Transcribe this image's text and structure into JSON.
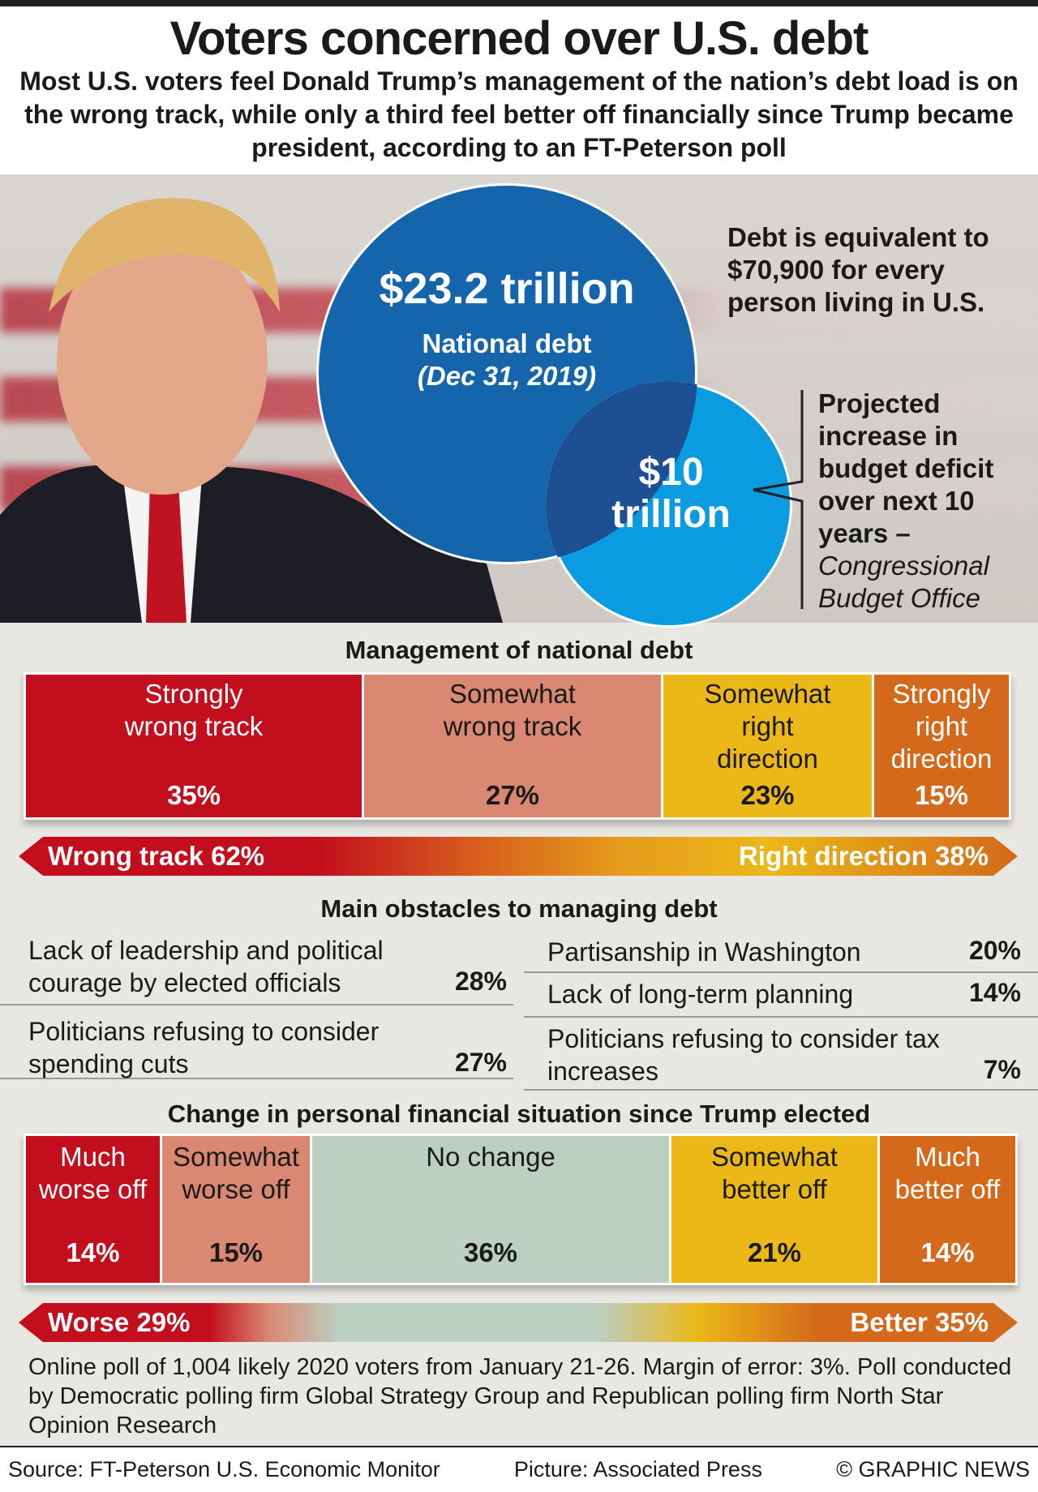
{
  "header": {
    "title": "Voters concerned over U.S. debt",
    "subtitle": "Most U.S. voters feel Donald Trump’s management of the nation’s debt load is on the wrong track, while only a third feel better off financially since Trump became president, according to an FT-Peterson poll"
  },
  "debt": {
    "amount": "$23.2 trillion",
    "label": "National debt",
    "date": "(Dec 31, 2019)",
    "per_person": "Debt is equivalent to $70,900 for every person living in U.S.",
    "deficit_amount_1": "$10",
    "deficit_amount_2": "trillion",
    "deficit_note": "Projected increase in budget deficit over next 10 years –",
    "deficit_source": "Congressional Budget Office",
    "colors": {
      "debt": "#1565ad",
      "deficit": "#0b9be0"
    }
  },
  "management": {
    "title": "Management of national debt",
    "items": [
      {
        "label": "Strongly wrong track",
        "pct": "35%",
        "value": 35,
        "color": "#c20e1d"
      },
      {
        "label": "Somewhat wrong track",
        "pct": "27%",
        "value": 27,
        "color": "#da8872"
      },
      {
        "label": "Somewhat right direction",
        "pct": "23%",
        "value": 23,
        "color": "#ebb818"
      },
      {
        "label": "Strongly right direction",
        "pct": "15%",
        "value": 15,
        "color": "#d4691b"
      }
    ],
    "left_total": "Wrong track 62%",
    "right_total": "Right direction 38%"
  },
  "obstacles": {
    "title": "Main obstacles to managing debt",
    "left": [
      {
        "label": "Lack of leadership and political courage by elected officials",
        "pct": "28%"
      },
      {
        "label": "Politicians refusing to consider spending cuts",
        "pct": "27%"
      }
    ],
    "right": [
      {
        "label": "Partisanship in Washington",
        "pct": "20%"
      },
      {
        "label": "Lack of long-term planning",
        "pct": "14%"
      },
      {
        "label": "Politicians refusing to consider tax increases",
        "pct": "7%"
      }
    ]
  },
  "finance": {
    "title": "Change in personal financial situation since Trump elected",
    "items": [
      {
        "label": "Much worse off",
        "pct": "14%",
        "value": 14,
        "color": "#c20e1d"
      },
      {
        "label": "Somewhat worse off",
        "pct": "15%",
        "value": 15,
        "color": "#da8872"
      },
      {
        "label": "No change",
        "pct": "36%",
        "value": 36,
        "color": "#bccfc0"
      },
      {
        "label": "Somewhat better off",
        "pct": "21%",
        "value": 21,
        "color": "#ebb818"
      },
      {
        "label": "Much better off",
        "pct": "14%",
        "value": 14,
        "color": "#d4691b"
      }
    ],
    "left_total": "Worse 29%",
    "right_total": "Better 35%"
  },
  "footnote": "Online poll of 1,004 likely 2020 voters from January 21-26. Margin of error: 3%. Poll conducted by Democratic polling firm Global Strategy Group and Republican polling firm North Star Opinion Research",
  "source": {
    "source": "Source: FT-Peterson U.S. Economic Monitor",
    "picture": "Picture: Associated Press",
    "credit": "© GRAPHIC NEWS"
  }
}
